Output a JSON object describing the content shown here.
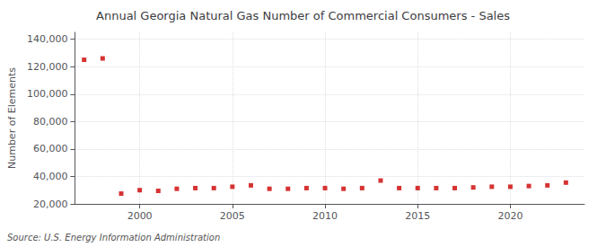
{
  "chart_data": {
    "type": "scatter",
    "title": "Annual Georgia Natural Gas Number of Commercial Consumers - Sales",
    "ylabel": "Number of Elements",
    "annotation": "Source: U.S. Energy Information Administration",
    "color": "#cc0000",
    "marker": "square",
    "x": [
      1997,
      1998,
      1999,
      2000,
      2001,
      2002,
      2003,
      2004,
      2005,
      2006,
      2007,
      2008,
      2009,
      2010,
      2011,
      2012,
      2013,
      2014,
      2015,
      2016,
      2017,
      2018,
      2019,
      2020,
      2021,
      2022,
      2023
    ],
    "values": [
      125000,
      126000,
      27500,
      30000,
      29500,
      31000,
      31500,
      31500,
      32500,
      33500,
      31000,
      31000,
      31500,
      31500,
      31000,
      31500,
      37000,
      31500,
      31500,
      31500,
      31500,
      32000,
      32500,
      32500,
      33000,
      33500,
      35500
    ],
    "xlim": [
      1996.5,
      2024
    ],
    "xticks": [
      2000,
      2005,
      2010,
      2015,
      2020
    ],
    "ylim": [
      20000,
      145000
    ],
    "yticks": [
      {
        "value": 20000,
        "label": "20,000"
      },
      {
        "value": 40000,
        "label": "40,000"
      },
      {
        "value": 60000,
        "label": "60,000"
      },
      {
        "value": 80000,
        "label": "80,000"
      },
      {
        "value": 100000,
        "label": "100,000"
      },
      {
        "value": 120000,
        "label": "120,000"
      },
      {
        "value": 140000,
        "label": "140,000"
      }
    ],
    "grid": true
  }
}
